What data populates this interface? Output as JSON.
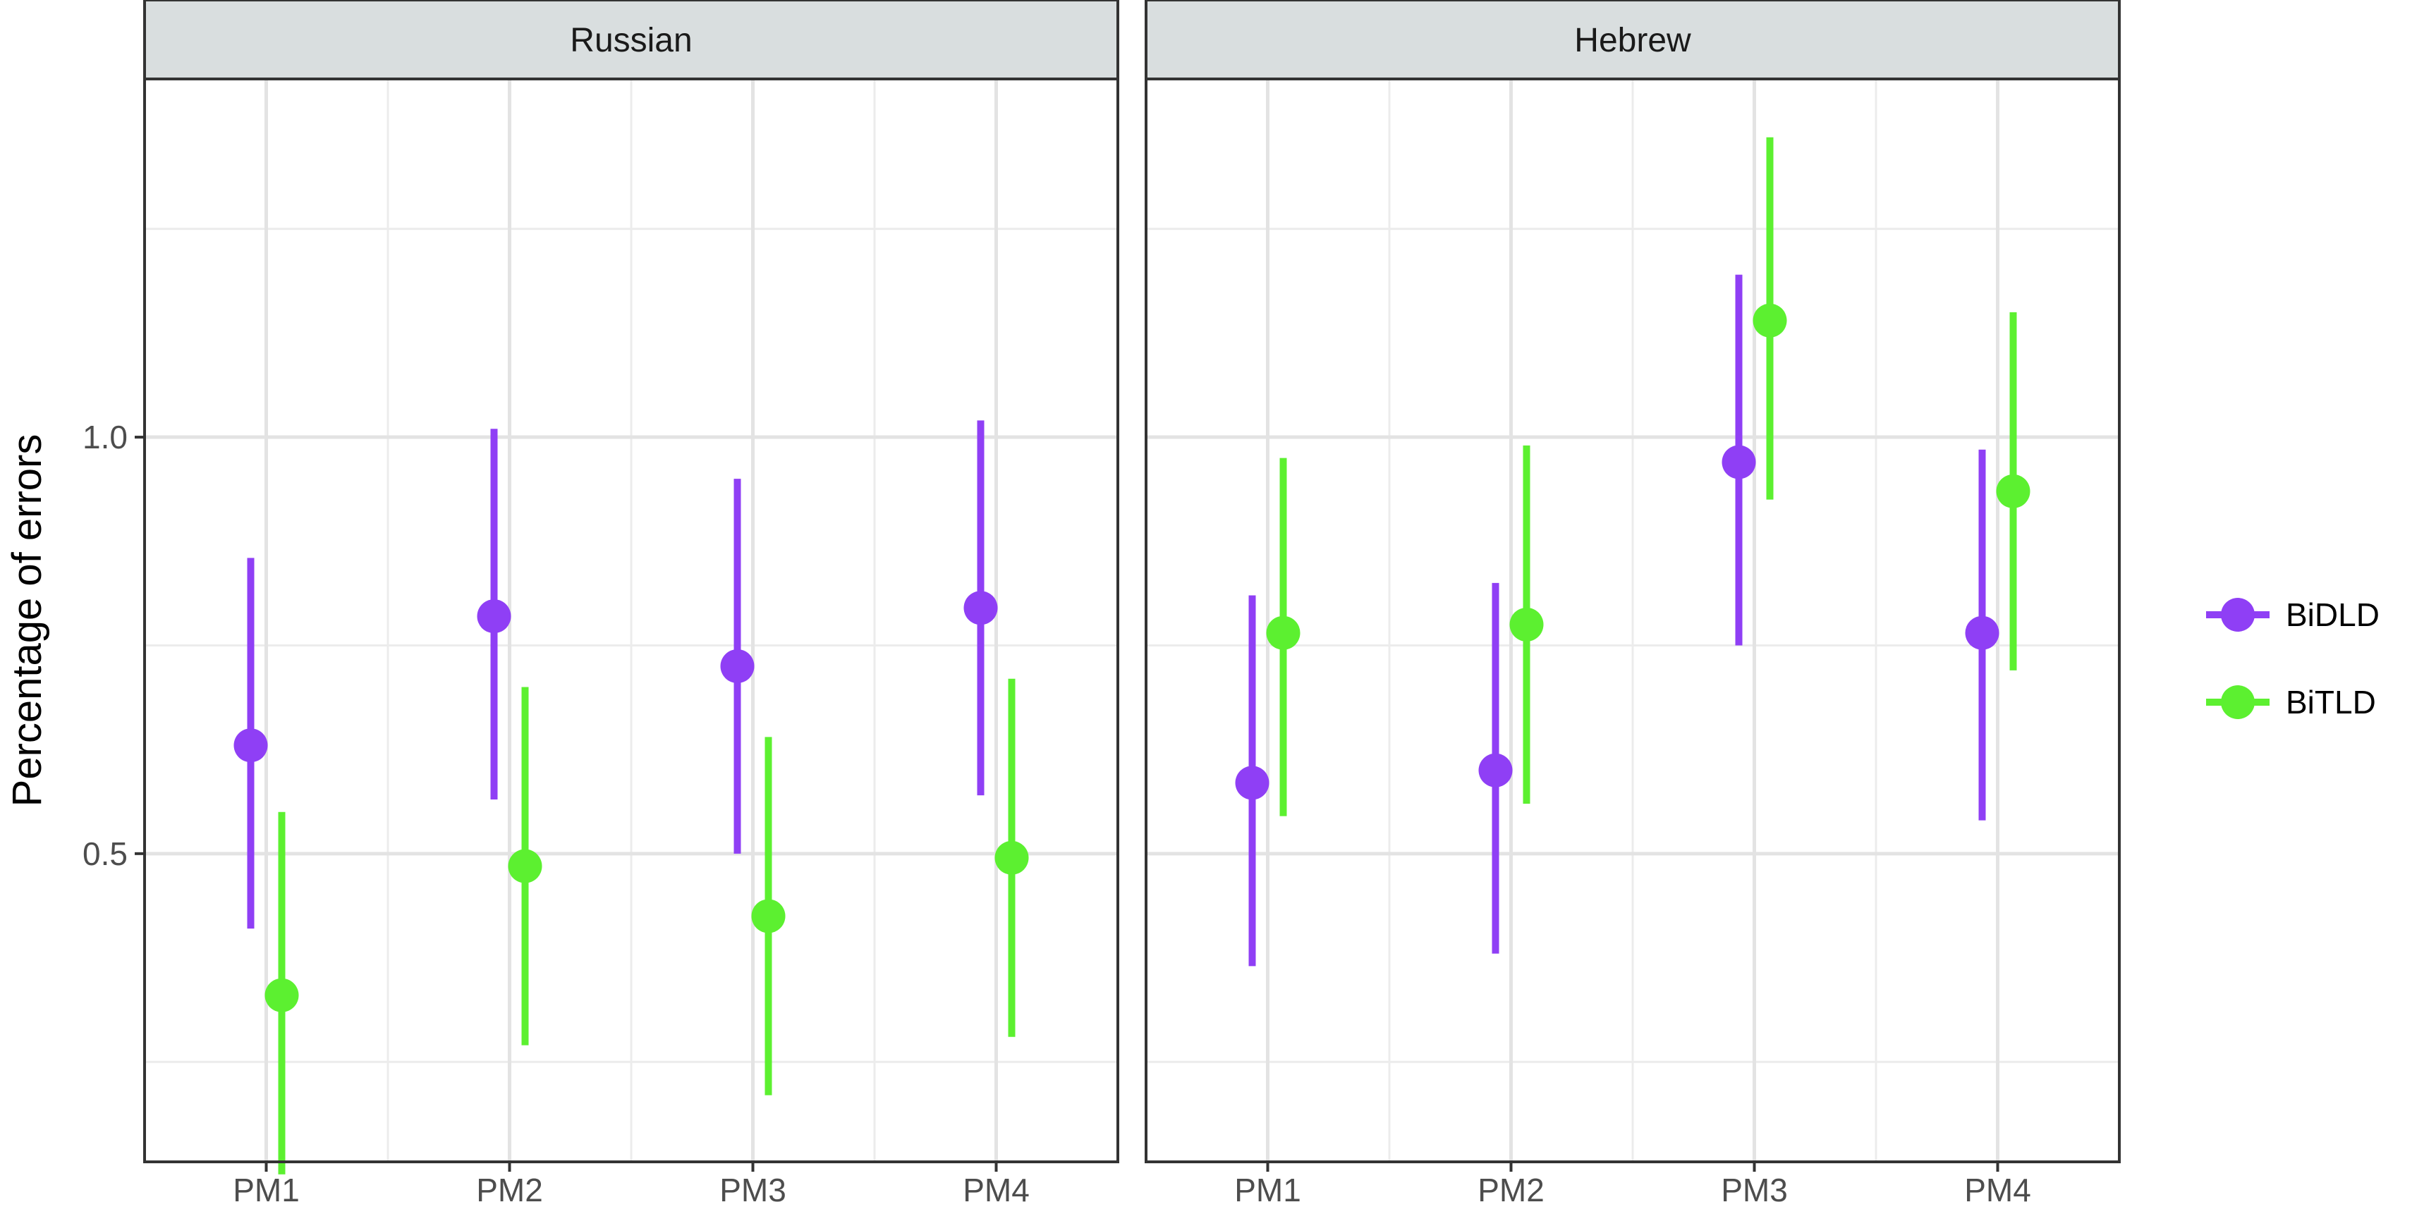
{
  "chart_data": {
    "type": "pointrange",
    "ylabel": "Percentage of errors",
    "xlabel": "",
    "categories": [
      "PM1",
      "PM2",
      "PM3",
      "PM4"
    ],
    "ylim": [
      0.13,
      1.43
    ],
    "yticks": [
      0.5,
      1.0
    ],
    "ytick_labels": [
      "0.5",
      "1.0"
    ],
    "ygrid_minor": [
      0.25,
      0.75,
      1.25
    ],
    "grid": true,
    "legend_position": "right",
    "series_colors": {
      "BiDLD": "#8f3ff5",
      "BiTLD": "#5cf030"
    },
    "facets": [
      {
        "label": "Russian",
        "series": [
          {
            "name": "BiDLD",
            "values": [
              0.63,
              0.785,
              0.725,
              0.795
            ],
            "lower": [
              0.41,
              0.565,
              0.5,
              0.57
            ],
            "upper": [
              0.855,
              1.01,
              0.95,
              1.02
            ]
          },
          {
            "name": "BiTLD",
            "values": [
              0.33,
              0.485,
              0.425,
              0.495
            ],
            "lower": [
              0.115,
              0.27,
              0.21,
              0.28
            ],
            "upper": [
              0.55,
              0.7,
              0.64,
              0.71
            ]
          }
        ]
      },
      {
        "label": "Hebrew",
        "series": [
          {
            "name": "BiDLD",
            "values": [
              0.585,
              0.6,
              0.97,
              0.765
            ],
            "lower": [
              0.365,
              0.38,
              0.75,
              0.54
            ],
            "upper": [
              0.81,
              0.825,
              1.195,
              0.985
            ]
          },
          {
            "name": "BiTLD",
            "values": [
              0.765,
              0.775,
              1.14,
              0.935
            ],
            "lower": [
              0.545,
              0.56,
              0.925,
              0.72
            ],
            "upper": [
              0.975,
              0.99,
              1.36,
              1.15
            ]
          }
        ]
      }
    ]
  }
}
